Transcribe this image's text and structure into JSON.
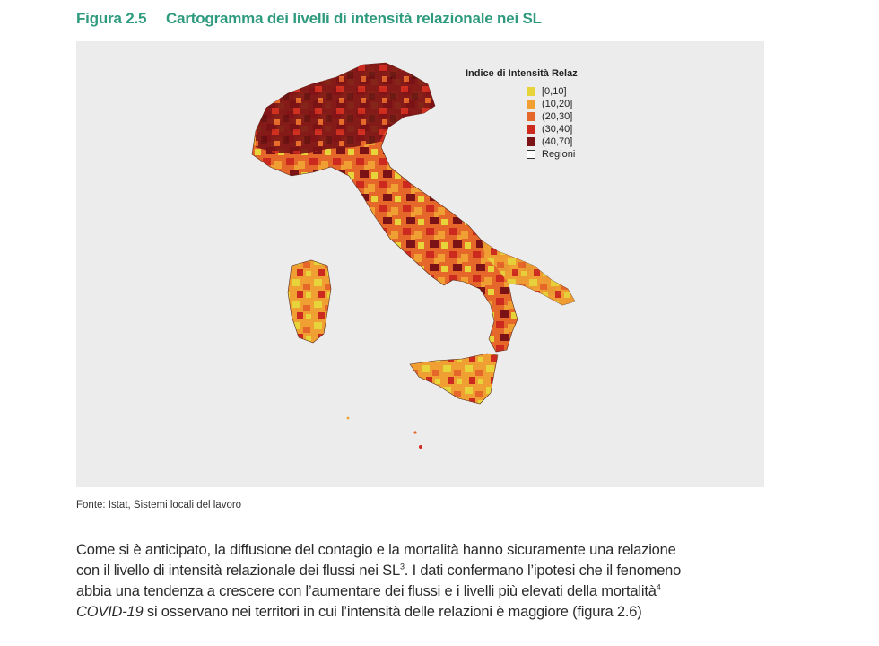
{
  "figure": {
    "number": "Figura 2.5",
    "title": "Cartogramma dei livelli di intensità relazionale nei SL"
  },
  "legend": {
    "title": "Indice di Intensità Relaz",
    "items": [
      {
        "label": "[0,10]",
        "color": "#e6d43a"
      },
      {
        "label": "(10,20]",
        "color": "#f0a033"
      },
      {
        "label": "(20,30]",
        "color": "#e5672a"
      },
      {
        "label": "(30,40]",
        "color": "#cc2a1f"
      },
      {
        "label": "(40,70]",
        "color": "#7a1216"
      },
      {
        "label": "Regioni",
        "color": "#ffffff"
      }
    ]
  },
  "source": "Fonte: Istat, Sistemi locali del lavoro",
  "body": {
    "line1": "Come si è anticipato, la diffusione del contagio e la mortalità hanno sicuramente una relazione",
    "line2a": "con il livello di intensità relazionale dei flussi nei SL",
    "sup3": "3",
    "line2b": ". I dati confermano l’ipotesi che il fenomeno",
    "line3a": "abbia una tendenza a crescere con l’aumentare dei flussi e i livelli più elevati della mortalità",
    "sup4": "4",
    "line4_italic": "COVID-19",
    "line4b": " si osservano nei territori in cui l’intensità delle relazioni è maggiore (figura 2.6)"
  }
}
